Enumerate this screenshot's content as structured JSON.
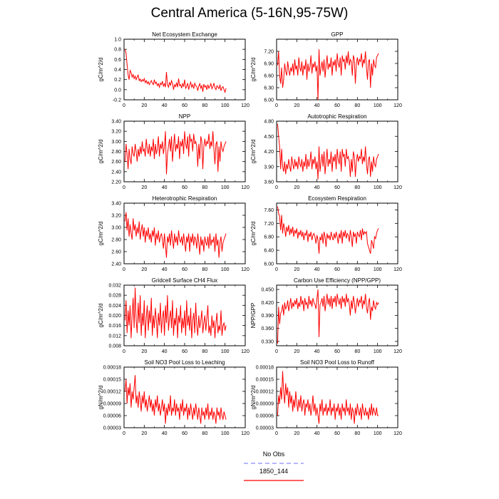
{
  "figure": {
    "title": "Central America (5-16N,95-75W)",
    "legend": [
      {
        "label": "No Obs",
        "color": "#8a8aff",
        "dash": true
      },
      {
        "label": "1850_144",
        "color": "#ff0000",
        "dash": false
      }
    ]
  },
  "chart_data": [
    {
      "type": "line",
      "title": "Net Ecosystem Exchange",
      "ylabel": "gC/m^2/d",
      "xlim": [
        0,
        120
      ],
      "xticks": [
        0,
        20,
        40,
        60,
        80,
        100,
        120
      ],
      "ylim": [
        -0.2,
        1.0
      ],
      "yticks": [
        "-0.2",
        "0.0",
        "0.2",
        "0.4",
        "0.6",
        "0.8",
        "1.0"
      ],
      "color": "#ff0000",
      "x_start": 1,
      "x_step": 1,
      "values": [
        0.8,
        0.72,
        0.5,
        0.3,
        0.2,
        0.38,
        0.34,
        0.25,
        0.3,
        0.22,
        0.27,
        0.2,
        0.25,
        0.29,
        0.18,
        0.21,
        0.16,
        0.2,
        0.17,
        0.22,
        0.14,
        0.18,
        0.12,
        0.16,
        0.1,
        0.14,
        0.18,
        0.13,
        0.1,
        0.2,
        0.12,
        0.15,
        0.08,
        0.12,
        0.05,
        0.13,
        0.1,
        0.17,
        0.07,
        0.12,
        0.05,
        0.35,
        0.1,
        0.05,
        0.15,
        0.08,
        0.18,
        0.12,
        0.0,
        0.1,
        0.06,
        0.14,
        0.05,
        0.22,
        0.08,
        0.1,
        0.03,
        0.12,
        0.06,
        0.2,
        0.02,
        0.07,
        0.13,
        0.0,
        0.09,
        0.15,
        0.05,
        0.1,
        0.02,
        0.13,
        0.08,
        0.06,
        -0.02,
        0.07,
        0.12,
        0.03,
        0.08,
        -0.04,
        0.11,
        0.05,
        0.08,
        0.0,
        0.1,
        0.03,
        0.07,
        0.12,
        0.02,
        0.06,
        0.13,
        0.04,
        0.0,
        0.08,
        0.05,
        0.02,
        0.1,
        -0.02,
        0.04,
        0.06,
        0.0,
        -0.05,
        0.03
      ]
    },
    {
      "type": "line",
      "title": "GPP",
      "ylabel": "gC/m^2/d",
      "xlim": [
        0,
        120
      ],
      "xticks": [
        0,
        20,
        40,
        60,
        80,
        100,
        120
      ],
      "ylim": [
        6.0,
        7.5
      ],
      "yticks": [
        "6.00",
        "6.30",
        "6.60",
        "6.90",
        "7.20"
      ],
      "color": "#ff0000",
      "x_start": 1,
      "x_step": 1,
      "values": [
        6.85,
        7.2,
        6.6,
        6.4,
        6.8,
        6.3,
        6.5,
        6.9,
        6.7,
        6.6,
        6.95,
        6.75,
        6.6,
        6.8,
        6.7,
        6.9,
        6.6,
        7.0,
        6.75,
        6.85,
        6.6,
        7.05,
        6.8,
        6.7,
        6.95,
        6.6,
        6.85,
        6.75,
        7.0,
        6.5,
        6.9,
        6.7,
        6.8,
        7.1,
        6.65,
        6.9,
        6.8,
        6.95,
        6.7,
        6.85,
        6.0,
        7.25,
        6.6,
        6.8,
        6.95,
        6.7,
        7.0,
        6.55,
        6.85,
        7.1,
        6.75,
        6.9,
        6.8,
        7.05,
        6.6,
        6.95,
        6.85,
        7.0,
        6.7,
        7.15,
        6.9,
        6.8,
        7.05,
        6.6,
        7.1,
        6.95,
        7.0,
        6.75,
        7.1,
        6.9,
        7.2,
        6.85,
        7.0,
        6.95,
        6.6,
        7.1,
        7.0,
        6.4,
        6.9,
        7.05,
        6.85,
        7.0,
        6.95,
        7.15,
        6.8,
        7.0,
        6.9,
        7.2,
        6.8,
        6.5,
        6.95,
        7.0,
        6.3,
        6.9,
        6.6,
        7.0,
        6.85,
        6.8,
        7.05,
        7.1,
        7.15
      ]
    },
    {
      "type": "line",
      "title": "NPP",
      "ylabel": "gC/m^2/d",
      "xlim": [
        0,
        120
      ],
      "xticks": [
        0,
        20,
        40,
        60,
        80,
        100,
        120
      ],
      "ylim": [
        2.2,
        3.4
      ],
      "yticks": [
        "2.20",
        "2.40",
        "2.60",
        "2.80",
        "3.00",
        "3.20",
        "3.40"
      ],
      "color": "#ff0000",
      "x_start": 1,
      "x_step": 1,
      "values": [
        2.6,
        2.95,
        2.75,
        2.45,
        2.85,
        2.65,
        2.55,
        2.9,
        2.75,
        2.7,
        2.95,
        2.8,
        2.6,
        2.85,
        2.7,
        2.9,
        2.75,
        3.0,
        2.8,
        2.85,
        2.7,
        3.05,
        2.85,
        2.75,
        2.95,
        2.7,
        2.9,
        2.8,
        3.05,
        2.65,
        2.95,
        2.75,
        2.85,
        3.1,
        2.7,
        2.95,
        2.85,
        3.0,
        2.75,
        2.9,
        3.2,
        2.35,
        2.75,
        2.9,
        3.05,
        2.8,
        3.1,
        2.6,
        2.9,
        3.15,
        2.8,
        2.95,
        2.85,
        3.1,
        2.65,
        3.0,
        2.9,
        3.05,
        2.75,
        3.2,
        2.95,
        2.85,
        3.1,
        2.7,
        3.15,
        3.0,
        3.05,
        2.8,
        3.15,
        2.95,
        3.0,
        2.9,
        2.5,
        2.95,
        2.65,
        3.1,
        3.0,
        2.45,
        2.9,
        3.05,
        2.9,
        3.0,
        2.95,
        3.15,
        2.85,
        3.0,
        2.9,
        3.2,
        2.85,
        2.55,
        2.95,
        3.0,
        2.4,
        2.9,
        2.6,
        3.0,
        2.85,
        2.8,
        2.9,
        2.95,
        3.0
      ]
    },
    {
      "type": "line",
      "title": "Autotrophic Respiration",
      "ylabel": "gC/m^2/d",
      "xlim": [
        0,
        120
      ],
      "xticks": [
        0,
        20,
        40,
        60,
        80,
        100,
        120
      ],
      "ylim": [
        3.6,
        4.8
      ],
      "yticks": [
        "3.60",
        "3.90",
        "4.20",
        "4.50",
        "4.80"
      ],
      "color": "#ff0000",
      "x_start": 1,
      "x_step": 1,
      "values": [
        4.75,
        4.5,
        4.3,
        3.85,
        4.25,
        3.9,
        3.8,
        4.0,
        3.75,
        3.95,
        3.85,
        4.05,
        3.9,
        3.8,
        4.1,
        3.95,
        3.85,
        4.05,
        3.9,
        4.0,
        3.85,
        4.1,
        3.95,
        3.9,
        4.05,
        3.8,
        4.0,
        3.9,
        4.15,
        3.85,
        4.05,
        3.9,
        4.0,
        4.2,
        3.85,
        4.05,
        3.95,
        4.1,
        3.85,
        4.0,
        3.65,
        4.3,
        3.8,
        4.0,
        4.15,
        3.9,
        4.2,
        3.75,
        4.0,
        4.25,
        3.9,
        4.05,
        3.95,
        4.2,
        3.8,
        4.1,
        4.0,
        4.15,
        3.85,
        4.25,
        4.05,
        3.95,
        4.2,
        3.8,
        4.25,
        4.1,
        4.15,
        3.9,
        4.25,
        4.05,
        4.1,
        4.0,
        3.7,
        4.05,
        3.8,
        4.2,
        4.1,
        3.7,
        4.0,
        4.15,
        4.0,
        4.1,
        4.05,
        4.25,
        3.95,
        4.1,
        4.0,
        4.3,
        3.95,
        3.75,
        4.05,
        4.1,
        3.7,
        4.0,
        3.8,
        4.1,
        3.95,
        3.9,
        4.05,
        4.1,
        4.15
      ]
    },
    {
      "type": "line",
      "title": "Heterotrophic Respiration",
      "ylabel": "gC/m^2/d",
      "xlim": [
        0,
        120
      ],
      "xticks": [
        0,
        20,
        40,
        60,
        80,
        100,
        120
      ],
      "ylim": [
        2.4,
        3.4
      ],
      "yticks": [
        "2.40",
        "2.60",
        "2.80",
        "3.00",
        "3.20",
        "3.40"
      ],
      "color": "#ff0000",
      "x_start": 1,
      "x_step": 1,
      "values": [
        3.1,
        3.25,
        2.95,
        3.15,
        2.85,
        3.05,
        2.9,
        2.8,
        3.15,
        2.95,
        3.05,
        2.85,
        3.0,
        2.9,
        3.1,
        2.8,
        2.95,
        3.05,
        2.85,
        3.0,
        2.75,
        2.95,
        2.85,
        3.0,
        2.8,
        2.9,
        2.75,
        2.95,
        2.85,
        3.0,
        2.7,
        2.9,
        2.8,
        2.95,
        2.75,
        2.85,
        2.9,
        2.8,
        2.65,
        2.9,
        2.7,
        2.5,
        2.85,
        2.75,
        2.9,
        2.7,
        2.95,
        2.8,
        2.65,
        2.9,
        2.75,
        2.85,
        2.7,
        2.95,
        2.8,
        2.75,
        2.85,
        2.7,
        2.9,
        2.75,
        2.6,
        2.85,
        2.75,
        2.9,
        2.6,
        2.85,
        2.75,
        2.9,
        2.7,
        2.85,
        2.8,
        2.65,
        2.9,
        2.75,
        2.55,
        2.85,
        2.7,
        2.8,
        2.6,
        2.85,
        2.75,
        2.7,
        2.85,
        2.65,
        2.9,
        2.7,
        2.8,
        2.75,
        2.85,
        2.6,
        2.9,
        2.7,
        2.8,
        2.5,
        2.75,
        2.85,
        2.6,
        2.75,
        2.8,
        2.85,
        2.9
      ]
    },
    {
      "type": "line",
      "title": "Ecosystem Respiration",
      "ylabel": "gC/m^2/d",
      "xlim": [
        0,
        120
      ],
      "xticks": [
        0,
        20,
        40,
        60,
        80,
        100,
        120
      ],
      "ylim": [
        6.0,
        7.8
      ],
      "yticks": [
        "6.00",
        "6.40",
        "6.80",
        "7.20",
        "7.60"
      ],
      "color": "#ff0000",
      "x_start": 1,
      "x_step": 1,
      "values": [
        7.7,
        7.5,
        7.4,
        7.0,
        7.45,
        6.9,
        7.2,
        7.05,
        6.8,
        7.1,
        6.95,
        7.15,
        6.85,
        7.05,
        6.9,
        7.1,
        6.8,
        7.0,
        6.9,
        7.05,
        6.75,
        6.95,
        6.85,
        7.0,
        6.8,
        6.95,
        6.7,
        6.9,
        6.85,
        7.0,
        6.65,
        6.9,
        6.8,
        6.95,
        6.7,
        6.85,
        6.9,
        6.8,
        6.6,
        6.85,
        6.7,
        6.3,
        6.8,
        6.7,
        6.9,
        6.6,
        6.95,
        6.8,
        6.5,
        6.9,
        6.75,
        6.85,
        6.7,
        6.95,
        6.8,
        6.7,
        6.9,
        6.75,
        6.95,
        6.8,
        6.6,
        6.9,
        6.75,
        7.0,
        6.6,
        6.95,
        6.8,
        7.0,
        6.75,
        6.9,
        6.85,
        6.65,
        7.0,
        6.8,
        6.5,
        6.95,
        6.8,
        6.9,
        6.6,
        6.95,
        6.85,
        6.8,
        7.0,
        6.7,
        7.05,
        6.85,
        6.95,
        6.9,
        6.95,
        6.6,
        6.5,
        6.4,
        6.3,
        6.7,
        6.6,
        6.45,
        6.8,
        6.75,
        6.9,
        7.0,
        7.05
      ]
    },
    {
      "type": "line",
      "title": "Gridcell Surface CH4 Flux",
      "ylabel": "gC/m^2/d",
      "xlim": [
        0,
        120
      ],
      "xticks": [
        0,
        20,
        40,
        60,
        80,
        100,
        120
      ],
      "ylim": [
        0.008,
        0.032
      ],
      "yticks": [
        "0.008",
        "0.012",
        "0.016",
        "0.020",
        "0.024",
        "0.028",
        "0.032"
      ],
      "color": "#ff0000",
      "x_start": 1,
      "x_step": 1,
      "values": [
        0.018,
        0.026,
        0.013,
        0.022,
        0.016,
        0.024,
        0.011,
        0.02,
        0.027,
        0.015,
        0.031,
        0.018,
        0.013,
        0.025,
        0.017,
        0.028,
        0.012,
        0.021,
        0.016,
        0.026,
        0.011,
        0.019,
        0.024,
        0.014,
        0.022,
        0.017,
        0.027,
        0.012,
        0.02,
        0.015,
        0.023,
        0.018,
        0.011,
        0.021,
        0.016,
        0.025,
        0.013,
        0.019,
        0.022,
        0.012,
        0.024,
        0.017,
        0.028,
        0.014,
        0.019,
        0.022,
        0.015,
        0.026,
        0.012,
        0.019,
        0.016,
        0.023,
        0.011,
        0.02,
        0.017,
        0.024,
        0.013,
        0.019,
        0.015,
        0.022,
        0.012,
        0.026,
        0.016,
        0.02,
        0.014,
        0.023,
        0.011,
        0.018,
        0.021,
        0.013,
        0.025,
        0.016,
        0.012,
        0.02,
        0.015,
        0.018,
        0.022,
        0.013,
        0.017,
        0.02,
        0.014,
        0.019,
        0.024,
        0.013,
        0.016,
        0.012,
        0.02,
        0.015,
        0.018,
        0.011,
        0.017,
        0.021,
        0.013,
        0.016,
        0.014,
        0.022,
        0.012,
        0.016,
        0.017,
        0.014,
        0.016
      ]
    },
    {
      "type": "line",
      "title": "Carbon Use Efficiency (NPP/GPP)",
      "ylabel": "NPP/GPP",
      "xlim": [
        0,
        120
      ],
      "xticks": [
        0,
        20,
        40,
        60,
        80,
        100,
        120
      ],
      "ylim": [
        0.32,
        0.46
      ],
      "yticks": [
        "0.330",
        "0.360",
        "0.390",
        "0.420",
        "0.450"
      ],
      "color": "#ff0000",
      "x_start": 1,
      "x_step": 1,
      "values": [
        0.325,
        0.41,
        0.37,
        0.395,
        0.4,
        0.415,
        0.39,
        0.42,
        0.405,
        0.41,
        0.425,
        0.4,
        0.415,
        0.43,
        0.405,
        0.42,
        0.41,
        0.425,
        0.415,
        0.43,
        0.405,
        0.42,
        0.41,
        0.435,
        0.415,
        0.425,
        0.4,
        0.43,
        0.415,
        0.42,
        0.405,
        0.435,
        0.415,
        0.425,
        0.41,
        0.43,
        0.42,
        0.415,
        0.405,
        0.43,
        0.45,
        0.34,
        0.415,
        0.42,
        0.43,
        0.41,
        0.435,
        0.4,
        0.42,
        0.44,
        0.415,
        0.43,
        0.41,
        0.435,
        0.405,
        0.43,
        0.42,
        0.435,
        0.41,
        0.44,
        0.425,
        0.415,
        0.43,
        0.405,
        0.435,
        0.42,
        0.43,
        0.41,
        0.44,
        0.42,
        0.43,
        0.415,
        0.39,
        0.425,
        0.405,
        0.435,
        0.42,
        0.395,
        0.415,
        0.43,
        0.41,
        0.425,
        0.42,
        0.435,
        0.405,
        0.425,
        0.415,
        0.44,
        0.41,
        0.395,
        0.42,
        0.43,
        0.38,
        0.41,
        0.4,
        0.425,
        0.41,
        0.405,
        0.42,
        0.415,
        0.42
      ]
    },
    {
      "type": "line",
      "title": "Soil NO3 Pool Loss to Leaching",
      "ylabel": "gN/m^2/d",
      "xlim": [
        0,
        120
      ],
      "xticks": [
        0,
        20,
        40,
        60,
        80,
        100,
        120
      ],
      "ylim": [
        3e-05,
        0.00018
      ],
      "yticks": [
        "0.00003",
        "0.00006",
        "0.00009",
        "0.00012",
        "0.00015",
        "0.00018"
      ],
      "color": "#ff0000",
      "x_start": 1,
      "x_step": 1,
      "values": [
        0.00012,
        0.00015,
        9e-05,
        0.00013,
        0.00011,
        0.00014,
        8e-05,
        0.00012,
        0.0001,
        0.00013,
        0.00016,
        9e-05,
        0.00011,
        8e-05,
        0.00012,
        0.0001,
        7e-05,
        0.00011,
        9e-05,
        0.00012,
        8e-05,
        0.0001,
        7e-05,
        9e-05,
        0.00011,
        8e-05,
        0.0001,
        7e-05,
        9e-05,
        6e-05,
        0.0001,
        8e-05,
        0.00011,
        7e-05,
        9e-05,
        6e-05,
        8e-05,
        0.0001,
        7e-05,
        9e-05,
        4e-05,
        8e-05,
        6e-05,
        9e-05,
        7e-05,
        0.00011,
        6e-05,
        8e-05,
        7e-05,
        0.0001,
        6e-05,
        9e-05,
        7e-05,
        8e-05,
        5e-05,
        9e-05,
        7e-05,
        0.0001,
        6e-05,
        8e-05,
        7e-05,
        9e-05,
        5e-05,
        8e-05,
        6e-05,
        9e-05,
        7e-05,
        5e-05,
        8e-05,
        6e-05,
        9e-05,
        7e-05,
        5e-05,
        8e-05,
        6e-05,
        4e-05,
        8e-05,
        6e-05,
        7e-05,
        5e-05,
        8e-05,
        6e-05,
        9e-05,
        5e-05,
        7e-05,
        6e-05,
        8e-05,
        5e-05,
        7e-05,
        6e-05,
        4e-05,
        8e-05,
        6e-05,
        7e-05,
        5e-05,
        8e-05,
        6e-05,
        5e-05,
        7e-05,
        6e-05,
        5e-05
      ]
    },
    {
      "type": "line",
      "title": "Soil NO3 Pool Loss to Runoff",
      "ylabel": "gN/m^2/d",
      "xlim": [
        0,
        120
      ],
      "xticks": [
        0,
        20,
        40,
        60,
        80,
        100,
        120
      ],
      "ylim": [
        3e-05,
        0.00018
      ],
      "yticks": [
        "0.00003",
        "0.00006",
        "0.00009",
        "0.00012",
        "0.00015",
        "0.00018"
      ],
      "color": "#ff0000",
      "x_start": 1,
      "x_step": 1,
      "values": [
        6e-05,
        0.00011,
        9e-05,
        0.00013,
        0.0001,
        0.00017,
        0.00012,
        9e-05,
        0.00014,
        0.00011,
        0.00013,
        8e-05,
        0.00012,
        9e-05,
        0.00011,
        7e-05,
        0.0001,
        8e-05,
        0.00012,
        9e-05,
        7e-05,
        0.0001,
        8e-05,
        0.00011,
        7e-05,
        9e-05,
        0.0001,
        6e-05,
        9e-05,
        8e-05,
        0.0001,
        7e-05,
        9e-05,
        6e-05,
        8e-05,
        0.00011,
        7e-05,
        9e-05,
        6e-05,
        8e-05,
        6e-05,
        4e-05,
        9e-05,
        7e-05,
        0.0001,
        6e-05,
        8e-05,
        7e-05,
        9e-05,
        6e-05,
        8e-05,
        7e-05,
        0.0001,
        6e-05,
        8e-05,
        7e-05,
        9e-05,
        5e-05,
        8e-05,
        7e-05,
        9e-05,
        6e-05,
        8e-05,
        5e-05,
        9e-05,
        7e-05,
        8e-05,
        6e-05,
        0.0001,
        7e-05,
        8e-05,
        6e-05,
        9e-05,
        5e-05,
        8e-05,
        7e-05,
        4e-05,
        8e-05,
        6e-05,
        9e-05,
        7e-05,
        6e-05,
        8e-05,
        5e-05,
        9e-05,
        7e-05,
        6e-05,
        8e-05,
        6e-05,
        7e-05,
        5e-05,
        8e-05,
        6e-05,
        9e-05,
        6e-05,
        8e-05,
        7e-05,
        6e-05,
        8e-05,
        6e-05,
        6e-05
      ]
    }
  ]
}
